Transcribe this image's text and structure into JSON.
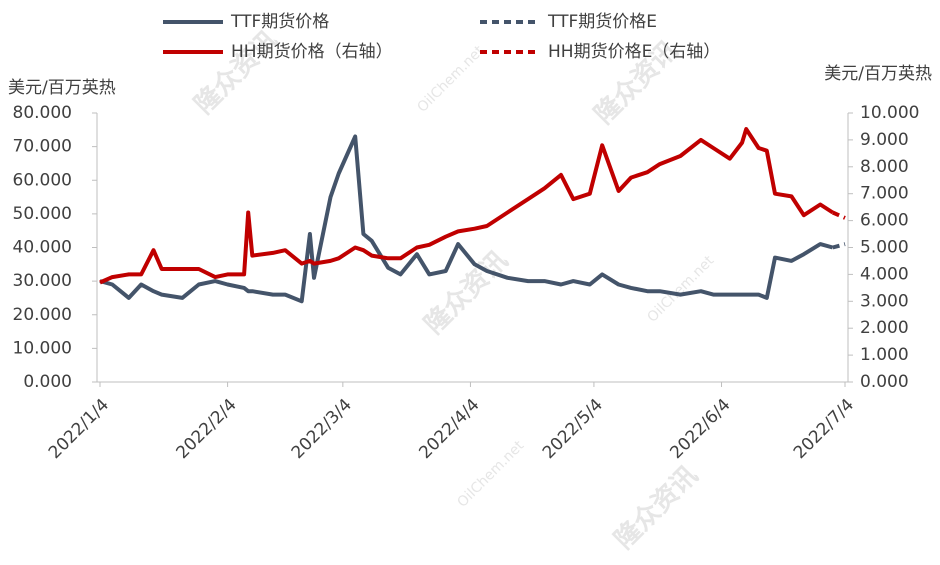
{
  "chart_data": {
    "type": "line",
    "y_label": "美元/百万英热",
    "y2_label": "美元/百万英热",
    "watermarks": [
      "隆众资讯",
      "OilChem.net"
    ],
    "x": [
      "2022/1/4",
      "2022/1/7",
      "2022/1/11",
      "2022/1/14",
      "2022/1/17",
      "2022/1/19",
      "2022/1/24",
      "2022/1/28",
      "2022/2/1",
      "2022/2/4",
      "2022/2/8",
      "2022/2/9",
      "2022/2/10",
      "2022/2/15",
      "2022/2/18",
      "2022/2/22",
      "2022/2/24",
      "2022/2/25",
      "2022/3/1",
      "2022/3/3",
      "2022/3/7",
      "2022/3/9",
      "2022/3/11",
      "2022/3/15",
      "2022/3/18",
      "2022/3/22",
      "2022/3/25",
      "2022/3/29",
      "2022/4/1",
      "2022/4/5",
      "2022/4/8",
      "2022/4/13",
      "2022/4/18",
      "2022/4/22",
      "2022/4/26",
      "2022/4/29",
      "2022/5/3",
      "2022/5/6",
      "2022/5/10",
      "2022/5/13",
      "2022/5/17",
      "2022/5/20",
      "2022/5/25",
      "2022/5/30",
      "2022/6/2",
      "2022/6/6",
      "2022/6/9",
      "2022/6/10",
      "2022/6/13",
      "2022/6/15",
      "2022/6/17",
      "2022/6/21",
      "2022/6/24",
      "2022/6/28",
      "2022/7/1",
      "2022/7/4"
    ],
    "xlim": [
      "2022/1/4",
      "2022/7/4"
    ],
    "xticks": [
      "2022/1/4",
      "2022/2/4",
      "2022/3/4",
      "2022/4/4",
      "2022/5/4",
      "2022/6/4",
      "2022/7/4"
    ],
    "ylim": [
      0,
      80
    ],
    "yticks": [
      {
        "value": 0,
        "label": "0.000"
      },
      {
        "value": 10,
        "label": "10.000"
      },
      {
        "value": 20,
        "label": "20.000"
      },
      {
        "value": 30,
        "label": "30.000"
      },
      {
        "value": 40,
        "label": "40.000"
      },
      {
        "value": 50,
        "label": "50.000"
      },
      {
        "value": 60,
        "label": "60.000"
      },
      {
        "value": 70,
        "label": "70.000"
      },
      {
        "value": 80,
        "label": "80.000"
      }
    ],
    "y2lim": [
      0,
      10
    ],
    "y2ticks": [
      {
        "value": 0,
        "label": "0.000"
      },
      {
        "value": 1,
        "label": "1.000"
      },
      {
        "value": 2,
        "label": "2.000"
      },
      {
        "value": 3,
        "label": "3.000"
      },
      {
        "value": 4,
        "label": "4.000"
      },
      {
        "value": 5,
        "label": "5.000"
      },
      {
        "value": 6,
        "label": "6.000"
      },
      {
        "value": 7,
        "label": "7.000"
      },
      {
        "value": 8,
        "label": "8.000"
      },
      {
        "value": 9,
        "label": "9.000"
      },
      {
        "value": 10,
        "label": "10.000"
      }
    ],
    "series": [
      {
        "name": "TTF期货价格",
        "color": "#44546a",
        "dashed": false,
        "values": [
          30,
          29,
          25,
          29,
          27,
          26,
          25,
          29,
          30,
          29,
          28,
          27,
          27,
          26,
          26,
          24,
          44,
          31,
          55,
          62,
          73,
          44,
          42,
          34,
          32,
          38,
          32,
          33,
          41,
          35,
          33,
          31,
          30,
          30,
          29,
          30,
          29,
          32,
          29,
          28,
          27,
          27,
          26,
          27,
          26,
          26,
          26,
          26,
          26,
          25,
          37,
          36,
          38,
          41,
          40,
          null
        ]
      },
      {
        "name": "TTF期货价格E",
        "color": "#44546a",
        "dashed": true,
        "values": [
          null,
          null,
          null,
          null,
          null,
          null,
          null,
          null,
          null,
          null,
          null,
          null,
          null,
          null,
          null,
          null,
          null,
          null,
          null,
          null,
          null,
          null,
          null,
          null,
          null,
          null,
          null,
          null,
          null,
          null,
          null,
          null,
          null,
          null,
          null,
          null,
          null,
          null,
          null,
          null,
          null,
          null,
          null,
          null,
          null,
          null,
          null,
          null,
          null,
          null,
          null,
          null,
          null,
          null,
          40,
          41
        ]
      },
      {
        "name": "HH期货价格（右轴）",
        "color": "#c00000",
        "dashed": false,
        "axis": "y2",
        "values": [
          3.7,
          3.9,
          4.0,
          4.0,
          4.9,
          4.2,
          4.2,
          4.2,
          3.9,
          4.0,
          4.0,
          6.3,
          4.7,
          4.8,
          4.9,
          4.4,
          4.5,
          4.4,
          4.5,
          4.6,
          5.0,
          4.9,
          4.7,
          4.6,
          4.6,
          5.0,
          5.1,
          5.4,
          5.6,
          5.7,
          5.8,
          6.3,
          6.8,
          7.2,
          7.7,
          6.8,
          7.0,
          8.8,
          7.1,
          7.6,
          7.8,
          8.1,
          8.4,
          9.0,
          8.7,
          8.3,
          8.9,
          9.4,
          8.7,
          8.6,
          7.0,
          6.9,
          6.2,
          6.6,
          6.3,
          null
        ]
      },
      {
        "name": "HH期货价格E（右轴）",
        "color": "#c00000",
        "dashed": true,
        "axis": "y2",
        "values": [
          null,
          null,
          null,
          null,
          null,
          null,
          null,
          null,
          null,
          null,
          null,
          null,
          null,
          null,
          null,
          null,
          null,
          null,
          null,
          null,
          null,
          null,
          null,
          null,
          null,
          null,
          null,
          null,
          null,
          null,
          null,
          null,
          null,
          null,
          null,
          null,
          null,
          null,
          null,
          null,
          null,
          null,
          null,
          null,
          null,
          null,
          null,
          null,
          null,
          null,
          null,
          null,
          null,
          null,
          6.3,
          6.1
        ]
      }
    ]
  }
}
